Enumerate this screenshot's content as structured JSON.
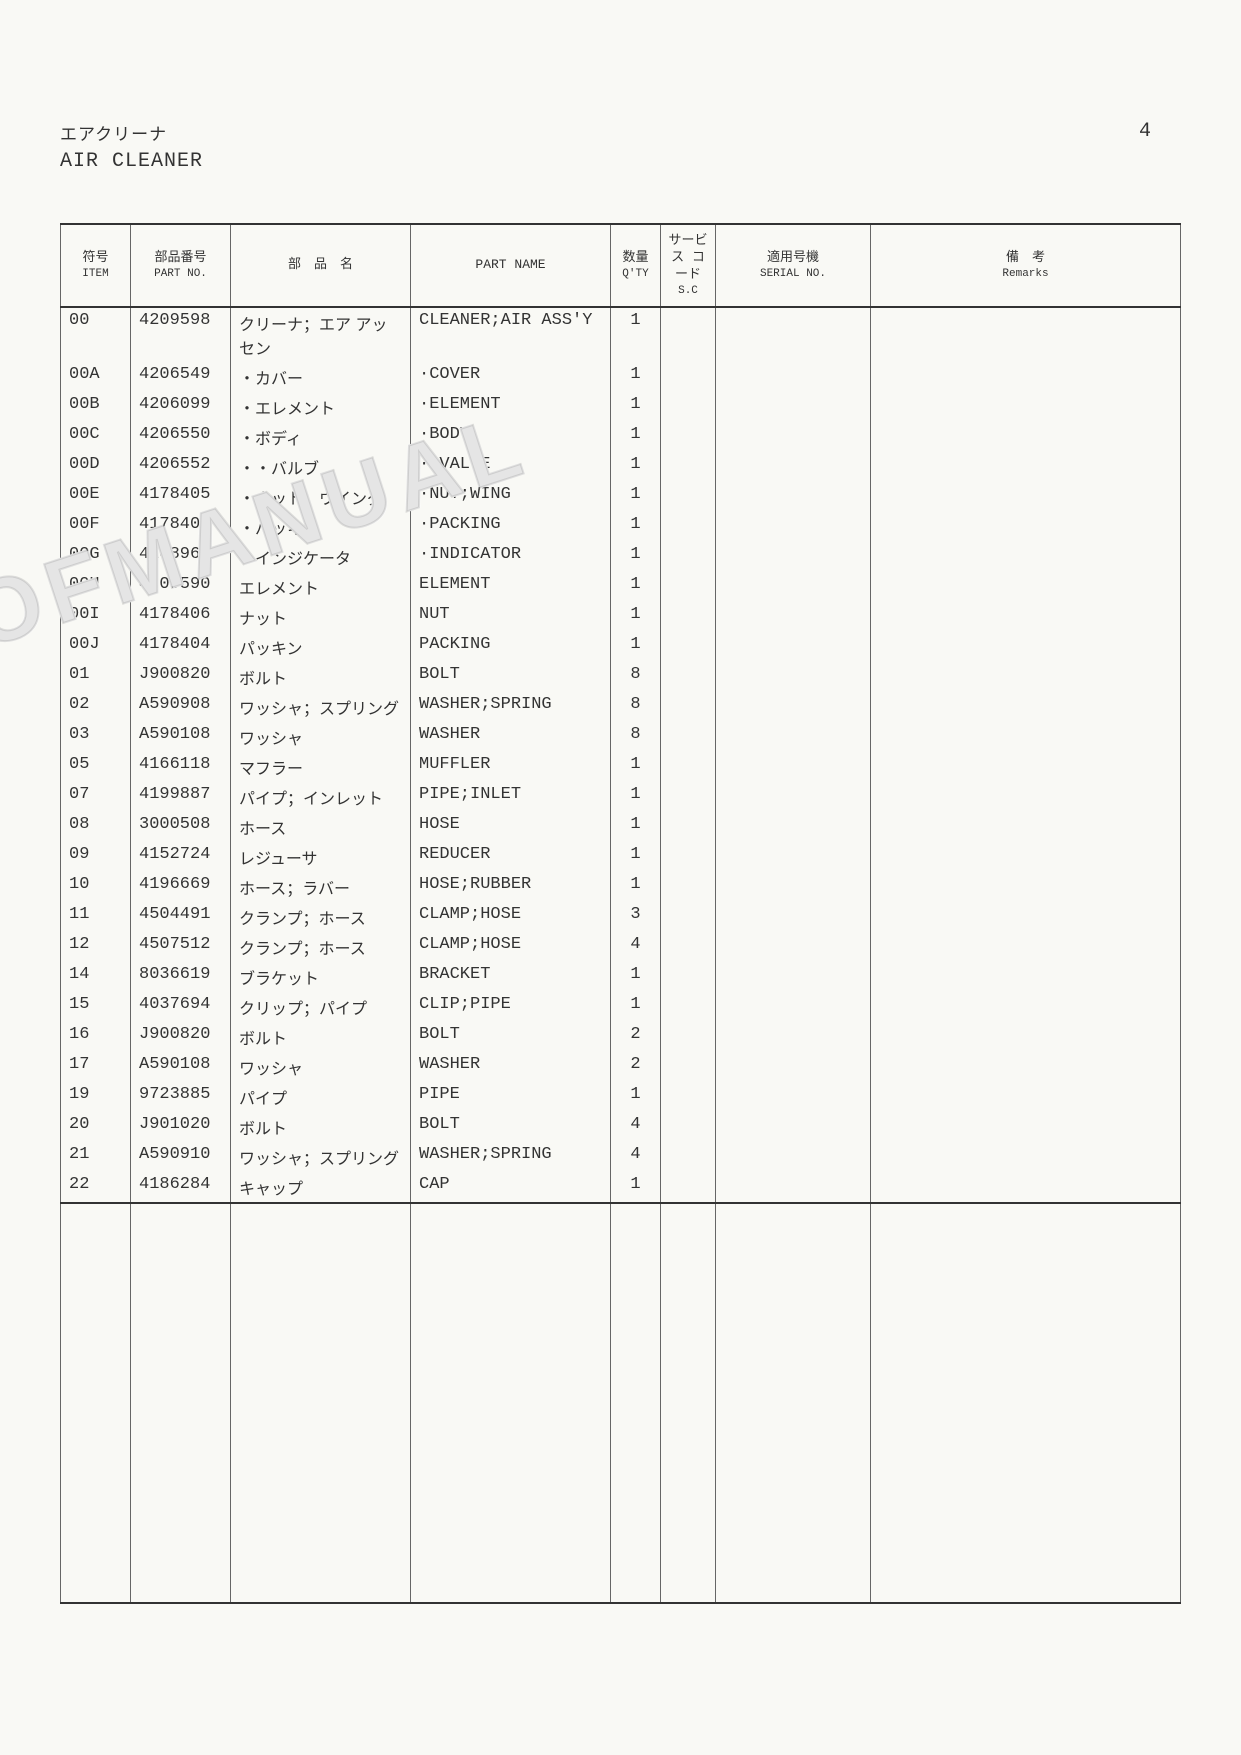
{
  "page_number": "4",
  "header": {
    "title_jp": "エアクリーナ",
    "title_en": "AIR CLEANER"
  },
  "watermark_text": "OFMANUAL",
  "columns": {
    "item": {
      "jp": "符号",
      "en": "ITEM"
    },
    "partno": {
      "jp": "部品番号",
      "en": "PART NO."
    },
    "jpname": {
      "jp": "部　品　名",
      "en": ""
    },
    "enname": {
      "jp": "",
      "en": "PART NAME"
    },
    "qty": {
      "jp": "数量",
      "en": "Q'TY"
    },
    "sc": {
      "jp": "サービス\nコード",
      "en": "S.C"
    },
    "serial": {
      "jp": "適用号機",
      "en": "SERIAL NO."
    },
    "rem": {
      "jp": "備　考",
      "en": "Remarks"
    }
  },
  "rows": [
    {
      "item": "00",
      "partno": "4209598",
      "jp": "クリーナ；エア アッセン",
      "en": "CLEANER;AIR ASS'Y",
      "qty": "1"
    },
    {
      "item": "00A",
      "partno": "4206549",
      "jp": "・カバー",
      "en": "·COVER",
      "qty": "1"
    },
    {
      "item": "00B",
      "partno": "4206099",
      "jp": "・エレメント",
      "en": "·ELEMENT",
      "qty": "1"
    },
    {
      "item": "00C",
      "partno": "4206550",
      "jp": "・ボディ",
      "en": "·BODY",
      "qty": "1"
    },
    {
      "item": "00D",
      "partno": "4206552",
      "jp": "・・バルブ",
      "en": "··VALVE",
      "qty": "1"
    },
    {
      "item": "00E",
      "partno": "4178405",
      "jp": "・ナット；ウイング",
      "en": "·NUT;WING",
      "qty": "1"
    },
    {
      "item": "00F",
      "partno": "4178404",
      "jp": "・パッキン",
      "en": "·PACKING",
      "qty": "1"
    },
    {
      "item": "00G",
      "partno": "4148963",
      "jp": "・インジケータ",
      "en": "·INDICATOR",
      "qty": "1"
    },
    {
      "item": "00H",
      "partno": "4209590",
      "jp": "エレメント",
      "en": "ELEMENT",
      "qty": "1"
    },
    {
      "item": "00I",
      "partno": "4178406",
      "jp": "ナット",
      "en": "NUT",
      "qty": "1"
    },
    {
      "item": "00J",
      "partno": "4178404",
      "jp": "パッキン",
      "en": "PACKING",
      "qty": "1"
    },
    {
      "item": "01",
      "partno": "J900820",
      "jp": "ボルト",
      "en": "BOLT",
      "qty": "8"
    },
    {
      "item": "02",
      "partno": "A590908",
      "jp": "ワッシャ；スプリング",
      "en": "WASHER;SPRING",
      "qty": "8"
    },
    {
      "item": "03",
      "partno": "A590108",
      "jp": "ワッシャ",
      "en": "WASHER",
      "qty": "8"
    },
    {
      "item": "05",
      "partno": "4166118",
      "jp": "マフラー",
      "en": "MUFFLER",
      "qty": "1"
    },
    {
      "item": "07",
      "partno": "4199887",
      "jp": "パイプ；インレット",
      "en": "PIPE;INLET",
      "qty": "1"
    },
    {
      "item": "08",
      "partno": "3000508",
      "jp": "ホース",
      "en": "HOSE",
      "qty": "1"
    },
    {
      "item": "09",
      "partno": "4152724",
      "jp": "レジューサ",
      "en": "REDUCER",
      "qty": "1"
    },
    {
      "item": "10",
      "partno": "4196669",
      "jp": "ホース；ラバー",
      "en": "HOSE;RUBBER",
      "qty": "1"
    },
    {
      "item": "11",
      "partno": "4504491",
      "jp": "クランプ；ホース",
      "en": "CLAMP;HOSE",
      "qty": "3"
    },
    {
      "item": "12",
      "partno": "4507512",
      "jp": "クランプ；ホース",
      "en": "CLAMP;HOSE",
      "qty": "4"
    },
    {
      "item": "14",
      "partno": "8036619",
      "jp": "ブラケット",
      "en": "BRACKET",
      "qty": "1"
    },
    {
      "item": "15",
      "partno": "4037694",
      "jp": "クリップ；パイプ",
      "en": "CLIP;PIPE",
      "qty": "1"
    },
    {
      "item": "16",
      "partno": "J900820",
      "jp": "ボルト",
      "en": "BOLT",
      "qty": "2"
    },
    {
      "item": "17",
      "partno": "A590108",
      "jp": "ワッシャ",
      "en": "WASHER",
      "qty": "2"
    },
    {
      "item": "19",
      "partno": "9723885",
      "jp": "パイプ",
      "en": "PIPE",
      "qty": "1"
    },
    {
      "item": "20",
      "partno": "J901020",
      "jp": "ボルト",
      "en": "BOLT",
      "qty": "4"
    },
    {
      "item": "21",
      "partno": "A590910",
      "jp": "ワッシャ；スプリング",
      "en": "WASHER;SPRING",
      "qty": "4"
    },
    {
      "item": "22",
      "partno": "4186284",
      "jp": "キャップ",
      "en": "CAP",
      "qty": "1"
    }
  ]
}
